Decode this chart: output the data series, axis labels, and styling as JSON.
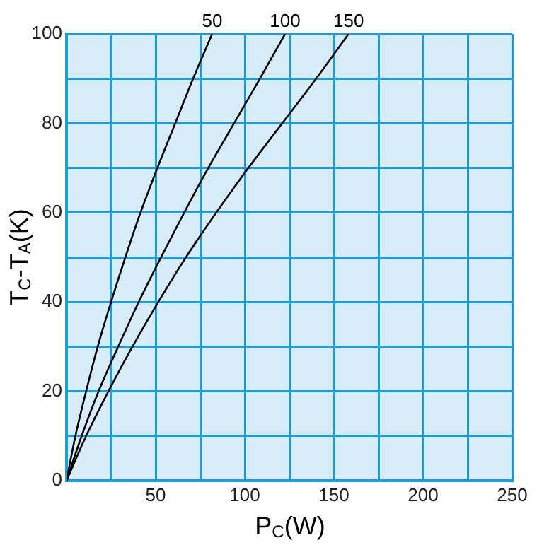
{
  "chart_data": {
    "type": "line",
    "xlabel": "P$_{C}$(W)",
    "ylabel": "T$_{C}$-T$_{A}$(K)",
    "xlim": [
      0,
      250
    ],
    "ylim": [
      0,
      100
    ],
    "xticks": [
      {
        "value": 0,
        "label": null
      },
      {
        "value": 25,
        "label": null
      },
      50,
      {
        "value": 75,
        "label": null
      },
      100,
      {
        "value": 125,
        "label": null
      },
      150,
      {
        "value": 175,
        "label": null
      },
      200,
      {
        "value": 225,
        "label": null
      },
      250
    ],
    "yticks": [
      0,
      {
        "value": 10,
        "label": null
      },
      20,
      {
        "value": 30,
        "label": null
      },
      40,
      {
        "value": 50,
        "label": null
      },
      60,
      {
        "value": 70,
        "label": null
      },
      80,
      {
        "value": 90,
        "label": null
      },
      100
    ],
    "grid": true,
    "legend": false,
    "marker": "none",
    "line_style": "solid",
    "series": [
      {
        "name": "50",
        "color": "#000000",
        "x": [
          0,
          5,
          11,
          17.5,
          25,
          33,
          41.5,
          51,
          61,
          71,
          81.7
        ],
        "values": [
          0,
          10,
          20,
          30,
          40,
          50,
          60,
          70,
          80,
          90,
          100
        ]
      },
      {
        "name": "100",
        "color": "#000000",
        "x": [
          0,
          8.5,
          18,
          29,
          40.5,
          53,
          66,
          79.5,
          94,
          108.5,
          122.6
        ],
        "values": [
          0,
          10,
          20,
          30,
          40,
          50,
          60,
          70,
          80,
          90,
          100
        ]
      },
      {
        "name": "150",
        "color": "#000000",
        "x": [
          0,
          11,
          23.5,
          37,
          51.5,
          67,
          84,
          102,
          121,
          140,
          158.2
        ],
        "values": [
          0,
          10,
          20,
          30,
          40,
          50,
          60,
          70,
          80,
          90,
          100
        ]
      }
    ]
  }
}
